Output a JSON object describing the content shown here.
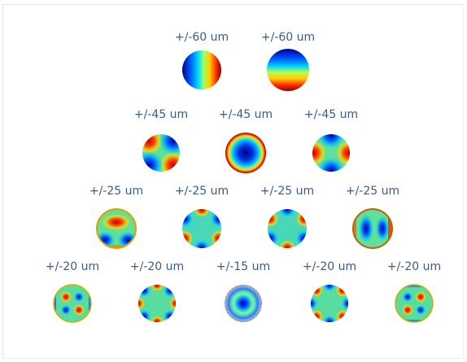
{
  "rows": [
    {
      "items": [
        {
          "label": "+/-60 um",
          "icon": "zernike-tilt-x-icon"
        },
        {
          "label": "+/-60 um",
          "icon": "zernike-tilt-y-icon"
        }
      ]
    },
    {
      "items": [
        {
          "label": "+/-45 um",
          "icon": "zernike-astigmatism-oblique-icon"
        },
        {
          "label": "+/-45 um",
          "icon": "zernike-defocus-icon"
        },
        {
          "label": "+/-45 um",
          "icon": "zernike-astigmatism-vertical-icon"
        }
      ]
    },
    {
      "items": [
        {
          "label": "+/-25 um",
          "icon": "zernike-coma-y-icon"
        },
        {
          "label": "+/-25 um",
          "icon": "zernike-trefoil-a-icon"
        },
        {
          "label": "+/-25 um",
          "icon": "zernike-trefoil-b-icon"
        },
        {
          "label": "+/-25 um",
          "icon": "zernike-coma-x-icon"
        }
      ]
    },
    {
      "items": [
        {
          "label": "+/-20 um",
          "icon": "zernike-secondary-astigmatism-a-icon"
        },
        {
          "label": "+/-20 um",
          "icon": "zernike-tetrafoil-a-icon"
        },
        {
          "label": "+/-15 um",
          "icon": "zernike-spherical-icon"
        },
        {
          "label": "+/-20 um",
          "icon": "zernike-tetrafoil-b-icon"
        },
        {
          "label": "+/-20 um",
          "icon": "zernike-secondary-astigmatism-b-icon"
        }
      ]
    }
  ],
  "colors": {
    "label_text": "#3a5c88",
    "colormap": [
      "#00008f",
      "#0050ff",
      "#00c8ff",
      "#38e0a8",
      "#7ce07a",
      "#ffe000",
      "#ff7a00",
      "#e00000",
      "#800000"
    ]
  }
}
